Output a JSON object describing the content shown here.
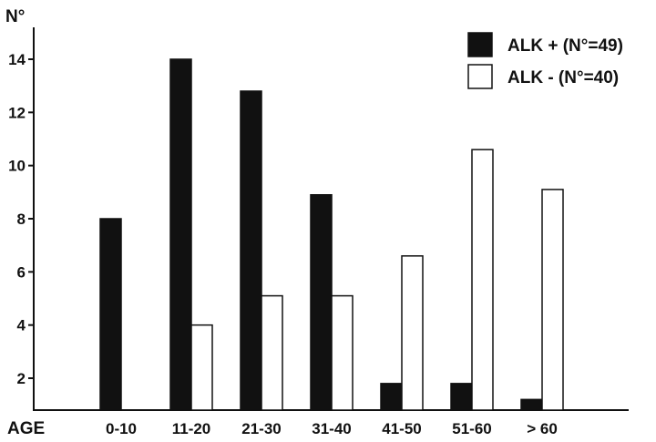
{
  "chart_data": {
    "type": "bar",
    "title": "",
    "ylabel": "N°",
    "xlabel": "AGE",
    "categories": [
      "0-10",
      "11-20",
      "21-30",
      "31-40",
      "41-50",
      "51-60",
      "> 60"
    ],
    "series": [
      {
        "name": "ALK + (N°=49)",
        "values": [
          8,
          14,
          12.8,
          8.9,
          1.8,
          1.8,
          1.2
        ]
      },
      {
        "name": "ALK - (N°=40)",
        "values": [
          0,
          4,
          5.1,
          5.1,
          6.6,
          10.6,
          9.1
        ]
      }
    ],
    "yticks": [
      2,
      4,
      6,
      8,
      10,
      12,
      14
    ],
    "ylim": [
      0.8,
      15.2
    ],
    "legend_position": "top-right",
    "grid": false,
    "colors": {
      "alk_pos": "#111111",
      "alk_neg": "#ffffff",
      "stroke": "#111111"
    }
  }
}
